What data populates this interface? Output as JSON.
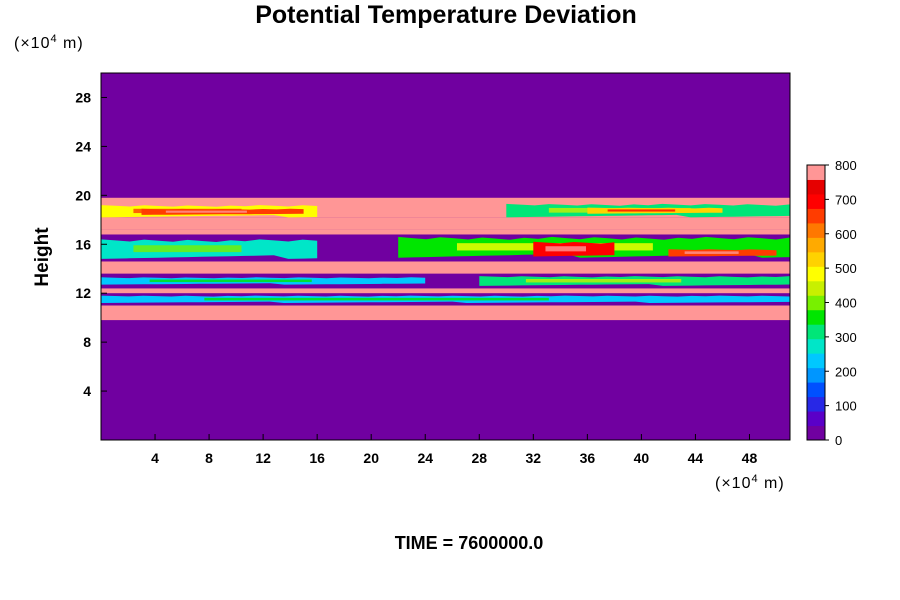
{
  "chart_data": {
    "type": "heatmap",
    "title": "Potential Temperature Deviation",
    "ylabel": "Height",
    "xlabel": "",
    "y_unit": {
      "prefix": "(×10",
      "exp": "4",
      "suffix": " m)"
    },
    "x_unit": {
      "prefix": "(×10",
      "exp": "4",
      "suffix": " m)"
    },
    "xlim": [
      0,
      51
    ],
    "ylim": [
      0,
      30
    ],
    "x_ticks": [
      4,
      8,
      12,
      16,
      20,
      24,
      28,
      32,
      36,
      40,
      44,
      48
    ],
    "x_tick_labels": [
      "4",
      "8",
      "12",
      "16",
      "20",
      "24",
      "28",
      "32",
      "36",
      "40",
      "44",
      "48"
    ],
    "y_ticks": [
      4,
      8,
      12,
      16,
      20,
      24,
      28
    ],
    "y_tick_labels": [
      "4",
      "8",
      "12",
      "16",
      "20",
      "24",
      "28"
    ],
    "colorbar": {
      "min": 0,
      "max": 800,
      "ticks": [
        0,
        100,
        200,
        300,
        400,
        500,
        600,
        700,
        800
      ],
      "tick_labels": [
        "0",
        "100",
        "200",
        "300",
        "400",
        "500",
        "600",
        "700",
        "800"
      ],
      "colors": [
        "#7000a0",
        "#5a00c8",
        "#2828e6",
        "#0050ff",
        "#0096ff",
        "#00c8ff",
        "#00e6c8",
        "#00e678",
        "#00e600",
        "#78f000",
        "#c8f000",
        "#ffff00",
        "#ffd200",
        "#ffaa00",
        "#ff7800",
        "#ff3c00",
        "#ff0000",
        "#e60000",
        "#ff9696"
      ]
    },
    "background_value": 0,
    "layers": [
      {
        "y_bottom": 9.8,
        "y_top": 11.0,
        "value": 800,
        "note_free": ""
      },
      {
        "y_bottom": 11.0,
        "y_top": 12.0,
        "value": 0
      },
      {
        "y_bottom": 12.0,
        "y_top": 12.4,
        "value": 800
      },
      {
        "y_bottom": 12.4,
        "y_top": 13.6,
        "value": 0
      },
      {
        "y_bottom": 13.6,
        "y_top": 14.6,
        "value": 800
      },
      {
        "y_bottom": 14.6,
        "y_top": 16.8,
        "value": 0
      },
      {
        "y_bottom": 16.8,
        "y_top": 17.2,
        "value": 800
      },
      {
        "y_bottom": 17.2,
        "y_top": 18.2,
        "value": 800
      },
      {
        "y_bottom": 18.2,
        "y_top": 19.8,
        "value": 800
      }
    ],
    "features": [
      {
        "x": [
          0,
          16
        ],
        "y": [
          18.2,
          19.2
        ],
        "value": 500
      },
      {
        "x": [
          3,
          15
        ],
        "y": [
          18.4,
          18.9
        ],
        "value": 650
      },
      {
        "x": [
          30,
          51
        ],
        "y": [
          18.2,
          19.3
        ],
        "value": 300
      },
      {
        "x": [
          36,
          46
        ],
        "y": [
          18.5,
          19.0
        ],
        "value": 550
      },
      {
        "x": [
          0,
          16
        ],
        "y": [
          14.8,
          16.4
        ],
        "value": 250
      },
      {
        "x": [
          22,
          51
        ],
        "y": [
          14.9,
          16.6
        ],
        "value": 350
      },
      {
        "x": [
          32,
          38
        ],
        "y": [
          15.0,
          16.2
        ],
        "value": 700
      },
      {
        "x": [
          42,
          50
        ],
        "y": [
          15.0,
          15.6
        ],
        "value": 650
      },
      {
        "x": [
          0,
          24
        ],
        "y": [
          12.7,
          13.3
        ],
        "value": 200
      },
      {
        "x": [
          28,
          51
        ],
        "y": [
          12.6,
          13.4
        ],
        "value": 300
      },
      {
        "x": [
          0,
          51
        ],
        "y": [
          11.2,
          11.8
        ],
        "value": 200
      }
    ],
    "footer": "TIME = 7600000.0"
  }
}
